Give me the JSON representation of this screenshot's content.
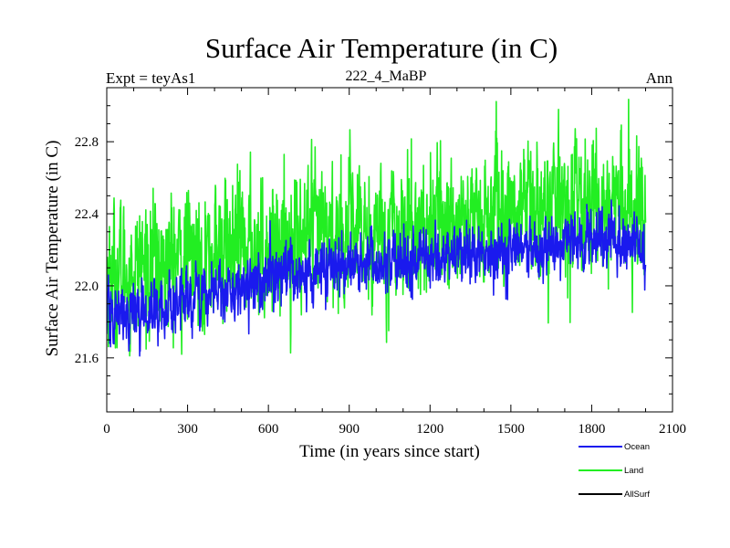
{
  "colors": {
    "ocean": "#1a1aee",
    "land": "#22ee22",
    "allsurf": "#000000",
    "axis": "#000000",
    "background": "#ffffff"
  },
  "chart_data": {
    "type": "line",
    "title": "Surface Air Temperature (in C)",
    "subtitle_left": "Expt = teyAs1",
    "subtitle_center": "222_4_MaBP",
    "subtitle_right": "Ann",
    "xlabel": "Time (in years since start)",
    "ylabel": "Surface Air Temperature (in C)",
    "xlim": [
      0,
      2100
    ],
    "ylim": [
      21.3,
      23.1
    ],
    "x_ticks": [
      0,
      300,
      600,
      900,
      1200,
      1500,
      1800,
      2100
    ],
    "x_tick_labels": [
      "0",
      "300",
      "600",
      "900",
      "1200",
      "1500",
      "1800",
      "2100"
    ],
    "y_ticks": [
      21.6,
      22.0,
      22.4,
      22.8
    ],
    "y_tick_labels": [
      "21.6",
      "22.0",
      "22.4",
      "22.8"
    ],
    "legend_position": "bottom-right",
    "series": [
      {
        "name": "Ocean",
        "color": "#1a1aee",
        "x_range": [
          0,
          2000
        ],
        "n_points": 2000,
        "trend_x": [
          0,
          150,
          400,
          700,
          1000,
          1300,
          1600,
          1800,
          2000
        ],
        "trend_y": [
          21.82,
          21.86,
          21.96,
          22.07,
          22.12,
          22.16,
          22.2,
          22.27,
          22.22
        ],
        "noise_sd": 0.075,
        "min": 21.56,
        "max": 22.52
      },
      {
        "name": "Land",
        "color": "#22ee22",
        "x_range": [
          0,
          2000
        ],
        "n_points": 2000,
        "trend_x": [
          0,
          150,
          400,
          700,
          1000,
          1300,
          1600,
          1800,
          2000
        ],
        "trend_y": [
          22.05,
          22.1,
          22.18,
          22.26,
          22.3,
          22.36,
          22.42,
          22.46,
          22.4
        ],
        "noise_sd": 0.17,
        "min": 21.52,
        "max": 23.04
      },
      {
        "name": "AllSurf",
        "color": "#000000",
        "x_range": [
          0,
          2000
        ],
        "n_points": 0,
        "trend_x": [],
        "trend_y": [],
        "noise_sd": 0,
        "min": null,
        "max": null
      }
    ]
  }
}
